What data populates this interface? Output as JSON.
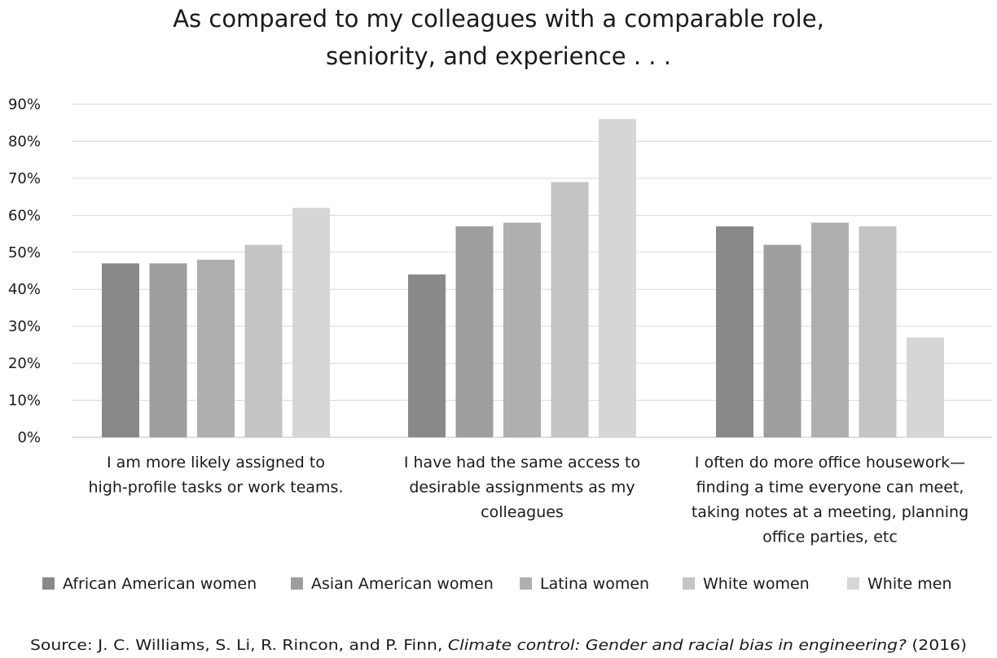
{
  "chart_data": {
    "type": "bar",
    "title_lines": [
      "As compared to my colleagues with a comparable role,",
      "seniority, and experience . . ."
    ],
    "categories": [
      [
        "I am more likely assigned to",
        "high-profile tasks or work teams."
      ],
      [
        "I have had the same access to",
        "desirable assignments as my",
        "colleagues"
      ],
      [
        "I often do more office housework—",
        "finding a time everyone can meet,",
        "taking notes at a meeting, planning",
        "office parties, etc"
      ]
    ],
    "series": [
      {
        "name": "African American women",
        "color": "#898989",
        "values": [
          47,
          44,
          57
        ]
      },
      {
        "name": "Asian American women",
        "color": "#9e9e9e",
        "values": [
          47,
          57,
          52
        ]
      },
      {
        "name": "Latina women",
        "color": "#afafaf",
        "values": [
          48,
          58,
          58
        ]
      },
      {
        "name": "White women",
        "color": "#c4c4c4",
        "values": [
          52,
          69,
          57
        ]
      },
      {
        "name": "White men",
        "color": "#d6d6d6",
        "values": [
          62,
          86,
          27
        ]
      }
    ],
    "ylim": [
      0,
      90
    ],
    "yticks": [
      "0%",
      "10%",
      "20%",
      "30%",
      "40%",
      "50%",
      "60%",
      "70%",
      "80%",
      "90%"
    ],
    "grid": true,
    "legend_position": "bottom",
    "source": {
      "prefix": "Source: J. C. Williams, S. Li, R. Rincon, and P. Finn, ",
      "italic": "Climate control: Gender and racial bias in engineering?",
      "suffix": " (2016)"
    }
  }
}
